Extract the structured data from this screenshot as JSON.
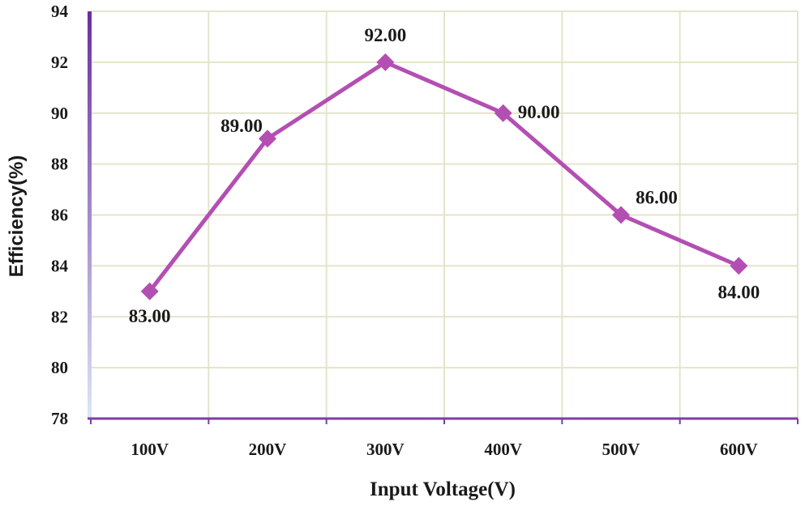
{
  "chart_data": {
    "type": "line",
    "title": "",
    "xlabel": "Input Voltage(V)",
    "ylabel": "Efficiency(%)",
    "categories": [
      "100V",
      "200V",
      "300V",
      "400V",
      "500V",
      "600V"
    ],
    "series": [
      {
        "values": [
          83,
          89,
          92,
          90,
          86,
          84
        ],
        "labels": [
          "83.00",
          "89.00",
          "92.00",
          "90.00",
          "86.00",
          "84.00"
        ],
        "color": "#b34fb3",
        "marker": "diamond"
      }
    ],
    "ylim": [
      78,
      94
    ],
    "yticks": [
      "78",
      "80",
      "82",
      "84",
      "86",
      "88",
      "90",
      "92",
      "94"
    ],
    "grid": true,
    "legend": "none",
    "colors": {
      "gridline": "#e4e4cc",
      "x_axis": "#7b3ea6",
      "y_axis_gradient_top": "#6a2f9e",
      "y_axis_gradient_bottom": "#dde6f5"
    }
  }
}
